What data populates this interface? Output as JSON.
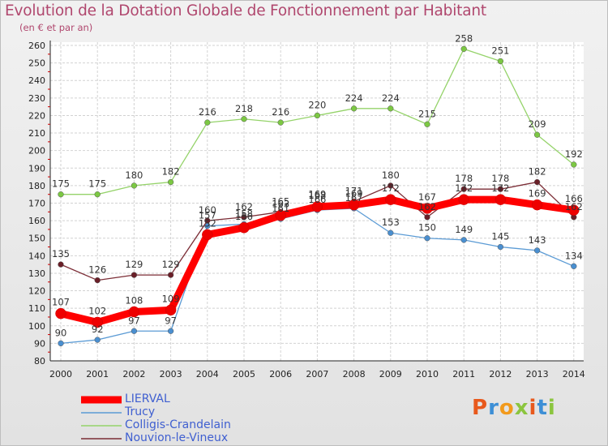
{
  "title": "Evolution de la Dotation Globale de Fonctionnement par Habitant",
  "subtitle": "(en € et par an)",
  "logo": {
    "text": "Proxiti",
    "colors": [
      "#e8591c",
      "#3d8fd6",
      "#f29a1c",
      "#8bc53f",
      "#e8591c",
      "#3d8fd6",
      "#8bc53f"
    ]
  },
  "chart_data": {
    "type": "line",
    "title": "Evolution de la Dotation Globale de Fonctionnement par Habitant",
    "subtitle": "(en € et par an)",
    "xlabel": "",
    "ylabel": "",
    "ylim": [
      80,
      260
    ],
    "y_ticks": [
      80,
      90,
      100,
      110,
      120,
      130,
      140,
      150,
      160,
      170,
      180,
      190,
      200,
      210,
      220,
      230,
      240,
      250,
      260
    ],
    "x": [
      "2000",
      "2001",
      "2002",
      "2003",
      "2004",
      "2005",
      "2006",
      "2007",
      "2008",
      "2009",
      "2010",
      "2011",
      "2012",
      "2013",
      "2014"
    ],
    "grid": true,
    "legend_position": "bottom-left",
    "series": [
      {
        "name": "Trucy",
        "color": "#5b9bd5",
        "point": "#4a8fd0",
        "values": [
          90,
          92,
          97,
          97,
          157,
          158,
          161,
          166,
          167,
          153,
          150,
          149,
          145,
          143,
          134
        ],
        "labels": [
          "90",
          "92",
          "97",
          "97",
          "157",
          "158",
          "161",
          "166",
          "167",
          "153",
          "150",
          "149",
          "145",
          "143",
          "134"
        ]
      },
      {
        "name": "Colligis-Crandelain",
        "color": "#95d36a",
        "point": "#7cc843",
        "values": [
          175,
          175,
          180,
          182,
          216,
          218,
          216,
          220,
          224,
          224,
          215,
          258,
          251,
          209,
          192
        ],
        "labels": [
          "175",
          "175",
          "180",
          "182",
          "216",
          "218",
          "216",
          "220",
          "224",
          "224",
          "215",
          "258",
          "251",
          "209",
          "192"
        ]
      },
      {
        "name": "Nouvion-le-Vineux",
        "color": "#7b2c35",
        "point": "#6a1f28",
        "values": [
          135,
          126,
          129,
          129,
          160,
          162,
          165,
          169,
          171,
          180,
          162,
          178,
          178,
          182,
          162
        ],
        "labels": [
          "135",
          "126",
          "129",
          "129",
          "160",
          "162",
          "165",
          "169",
          "171",
          "180",
          "162",
          "178",
          "178",
          "182",
          "162"
        ]
      },
      {
        "name": "LIERVAL",
        "color": "#ff0000",
        "point": "#ee0000",
        "values": [
          107,
          102,
          108,
          109,
          152,
          156,
          163,
          168,
          169,
          172,
          167,
          172,
          172,
          169,
          166
        ],
        "labels": [
          "107",
          "102",
          "108",
          "109",
          "152",
          "156",
          "163",
          "168",
          "169",
          "172",
          "167",
          "172",
          "172",
          "169",
          "166"
        ]
      }
    ]
  },
  "legend": [
    {
      "name": "LIERVAL",
      "color": "#ff0000",
      "thickness": "thick"
    },
    {
      "name": "Trucy",
      "color": "#5b9bd5",
      "thickness": "thin"
    },
    {
      "name": "Colligis-Crandelain",
      "color": "#95d36a",
      "thickness": "thin"
    },
    {
      "name": "Nouvion-le-Vineux",
      "color": "#7b2c35",
      "thickness": "thin"
    }
  ]
}
